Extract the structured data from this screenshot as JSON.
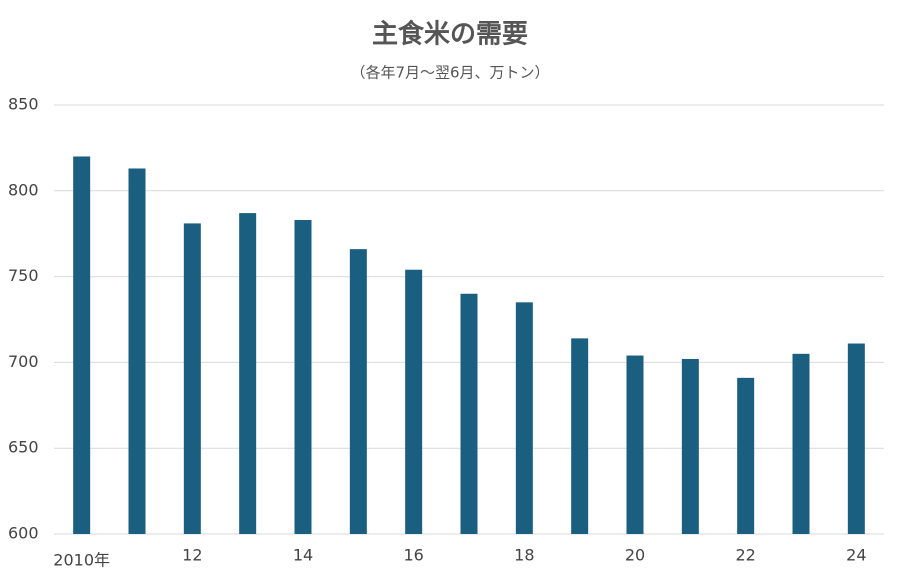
{
  "chart_data": {
    "type": "bar",
    "title": "主食米の需要",
    "subtitle": "（各年7月～翌6月、万トン）",
    "categories": [
      "2010年",
      null,
      "12",
      null,
      "14",
      null,
      "16",
      null,
      "18",
      null,
      "20",
      null,
      "22",
      null,
      "24"
    ],
    "values": [
      820,
      813,
      781,
      787,
      783,
      766,
      754,
      740,
      735,
      714,
      704,
      702,
      691,
      705,
      711
    ],
    "color": "#1a5e80",
    "ylim": [
      600,
      850
    ],
    "yticks": [
      600,
      650,
      700,
      750,
      800,
      850
    ],
    "grid": true
  }
}
